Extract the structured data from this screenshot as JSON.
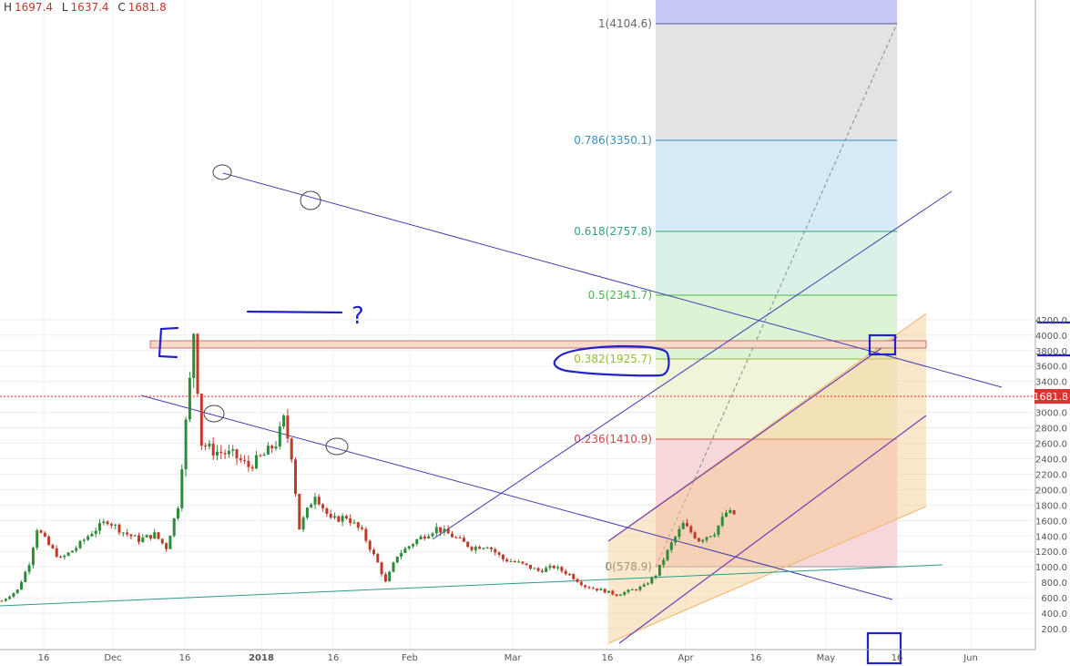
{
  "ohlc": {
    "h_label": "H",
    "h": "1697.4",
    "l_label": "L",
    "l": "1637.4",
    "c_label": "C",
    "c": "1681.8"
  },
  "colors": {
    "up": "#2e8b3a",
    "down": "#c0392b",
    "channel": "#3f3fb0",
    "support": "#2a9d8f",
    "annotation": "#2222cc",
    "price_label_bg": "#e03131",
    "orange_channel": "#f7c98b"
  },
  "chart_data": {
    "type": "candlestick",
    "title": "",
    "y_axis": {
      "ticks": [
        200,
        400,
        600,
        800,
        1000,
        1200,
        1400,
        1600,
        1800,
        2000,
        2200,
        2400,
        2600,
        2800,
        3000,
        3200,
        3400,
        3600,
        3800,
        4000,
        4200
      ],
      "ylim": [
        0,
        4250
      ],
      "side": "right"
    },
    "x_axis": {
      "ticks": [
        "16",
        "Dec",
        "16",
        "2018",
        "16",
        "Feb",
        "Mar",
        "16",
        "Apr",
        "16",
        "May",
        "16",
        "Jun"
      ]
    },
    "grid": true,
    "last_price": "1681.8",
    "fib_levels": [
      {
        "ratio": "1",
        "price": "4104.6",
        "label": "1(4104.6)"
      },
      {
        "ratio": "0.786",
        "price": "3350.1",
        "label": "0.786(3350.1)"
      },
      {
        "ratio": "0.618",
        "price": "2757.8",
        "label": "0.618(2757.8)"
      },
      {
        "ratio": "0.5",
        "price": "2341.7",
        "label": "0.5(2341.7)"
      },
      {
        "ratio": "0.382",
        "price": "1925.7",
        "label": "0.382(1925.7)"
      },
      {
        "ratio": "0.236",
        "price": "1410.9",
        "label": "0.236(1410.9)"
      },
      {
        "ratio": "0",
        "price": "578.9",
        "label": "0(578.9)"
      }
    ],
    "annotations": {
      "question_mark": "?"
    },
    "price_series_approx": [
      [
        "Nov 1",
        560
      ],
      [
        "Nov 5",
        700
      ],
      [
        "Nov 8",
        1050
      ],
      [
        "Nov 10",
        1500
      ],
      [
        "Nov 13",
        1280
      ],
      [
        "Nov 16",
        1100
      ],
      [
        "Nov 20",
        1250
      ],
      [
        "Nov 24",
        1450
      ],
      [
        "Nov 28",
        1600
      ],
      [
        "Dec 2",
        1450
      ],
      [
        "Dec 6",
        1350
      ],
      [
        "Dec 10",
        1420
      ],
      [
        "Dec 13",
        1250
      ],
      [
        "Dec 16",
        1800
      ],
      [
        "Dec 19",
        3400
      ],
      [
        "Dec 20",
        4050
      ],
      [
        "Dec 22",
        2600
      ],
      [
        "Dec 25",
        2500
      ],
      [
        "Dec 30",
        2450
      ],
      [
        "Jan 3",
        2300
      ],
      [
        "Jan 7",
        2450
      ],
      [
        "Jan 10",
        2600
      ],
      [
        "Jan 12",
        2900
      ],
      [
        "Jan 14",
        2450
      ],
      [
        "Jan 16",
        1500
      ],
      [
        "Jan 20",
        1950
      ],
      [
        "Jan 24",
        1600
      ],
      [
        "Jan 28",
        1650
      ],
      [
        "Feb 1",
        1450
      ],
      [
        "Feb 5",
        1050
      ],
      [
        "Feb 7",
        800
      ],
      [
        "Feb 10",
        1150
      ],
      [
        "Feb 15",
        1350
      ],
      [
        "Feb 20",
        1500
      ],
      [
        "Feb 24",
        1400
      ],
      [
        "Mar 1",
        1250
      ],
      [
        "Mar 5",
        1280
      ],
      [
        "Mar 9",
        1100
      ],
      [
        "Mar 13",
        1050
      ],
      [
        "Mar 18",
        950
      ],
      [
        "Mar 22",
        1000
      ],
      [
        "Mar 26",
        900
      ],
      [
        "Mar 30",
        750
      ],
      [
        "Apr 3",
        700
      ],
      [
        "Apr 7",
        640
      ],
      [
        "Apr 11",
        700
      ],
      [
        "Apr 14",
        750
      ],
      [
        "Apr 17",
        900
      ],
      [
        "Apr 21",
        1300
      ],
      [
        "Apr 24",
        1550
      ],
      [
        "Apr 28",
        1350
      ],
      [
        "May 2",
        1450
      ],
      [
        "May 5",
        1700
      ],
      [
        "May 7",
        1682
      ]
    ]
  }
}
